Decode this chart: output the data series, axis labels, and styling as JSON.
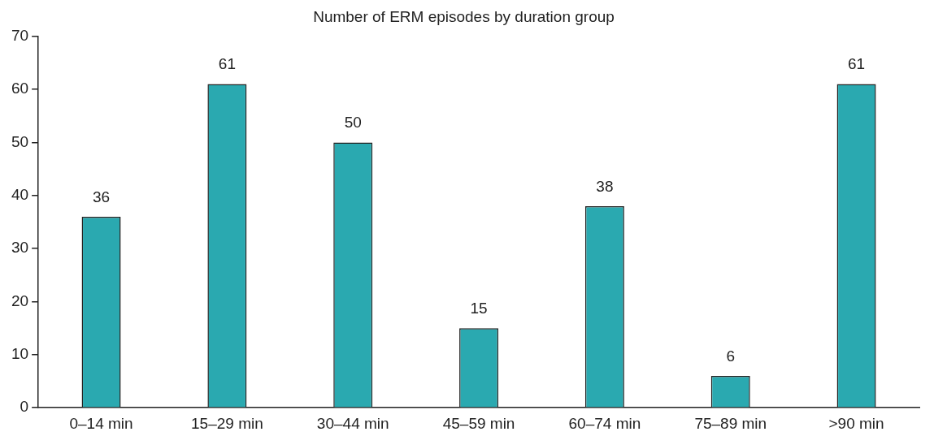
{
  "chart_data": {
    "type": "bar",
    "title": "Number of ERM episodes by duration group",
    "categories": [
      "0–14 min",
      "15–29 min",
      "30–44 min",
      "45–59 min",
      "60–74 min",
      "75–89 min",
      ">90 min"
    ],
    "values": [
      36,
      61,
      50,
      15,
      38,
      6,
      61
    ],
    "color": "#2aa9b0",
    "ylim": [
      0,
      70
    ],
    "yticks": [
      0,
      10,
      20,
      30,
      40,
      50,
      60,
      70
    ],
    "grid": false,
    "legend": false,
    "data_labels": true
  }
}
